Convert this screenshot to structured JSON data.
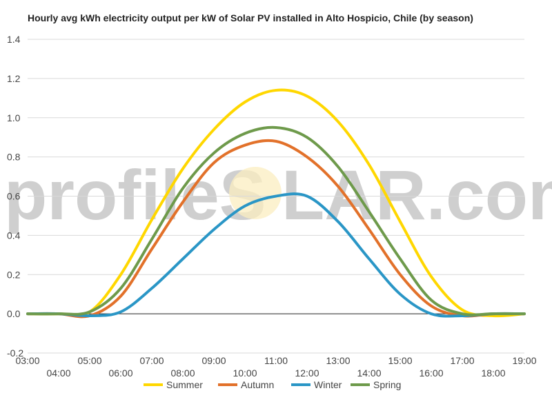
{
  "watermark": {
    "left": "profileS",
    "right": "LAR.com"
  },
  "chart_data": {
    "type": "line",
    "title": "Hourly avg kWh electricity output per kW of Solar PV installed in Alto Hospicio, Chile (by season)",
    "xlabel": "",
    "ylabel": "",
    "x": [
      3,
      4,
      5,
      6,
      7,
      8,
      9,
      10,
      11,
      12,
      13,
      14,
      15,
      16,
      17,
      18,
      19
    ],
    "x_tick_labels": [
      "03:00",
      "04:00",
      "05:00",
      "06:00",
      "07:00",
      "08:00",
      "09:00",
      "10:00",
      "11:00",
      "12:00",
      "13:00",
      "14:00",
      "15:00",
      "16:00",
      "17:00",
      "18:00",
      "19:00"
    ],
    "ylim": [
      -0.2,
      1.4
    ],
    "y_ticks": [
      -0.2,
      0.0,
      0.2,
      0.4,
      0.6,
      0.8,
      1.0,
      1.2,
      1.4
    ],
    "y_tick_labels": [
      "-0.2",
      "0.0",
      "0.2",
      "0.4",
      "0.6",
      "0.8",
      "1.0",
      "1.2",
      "1.4"
    ],
    "grid": true,
    "legend": "bottom",
    "series": [
      {
        "name": "Summer",
        "color": "#FFD700",
        "values": [
          0.0,
          0.0,
          0.01,
          0.2,
          0.48,
          0.74,
          0.94,
          1.08,
          1.14,
          1.11,
          0.98,
          0.76,
          0.47,
          0.19,
          0.02,
          -0.01,
          0.0
        ]
      },
      {
        "name": "Autumn",
        "color": "#E2712A",
        "values": [
          0.0,
          0.0,
          -0.01,
          0.09,
          0.33,
          0.57,
          0.77,
          0.86,
          0.88,
          0.8,
          0.65,
          0.43,
          0.2,
          0.04,
          -0.01,
          0.0,
          0.0
        ]
      },
      {
        "name": "Winter",
        "color": "#2A96C6",
        "values": [
          0.0,
          0.0,
          -0.01,
          0.01,
          0.13,
          0.28,
          0.43,
          0.55,
          0.6,
          0.6,
          0.47,
          0.28,
          0.1,
          0.0,
          -0.01,
          0.0,
          0.0
        ]
      },
      {
        "name": "Spring",
        "color": "#6E9A4B",
        "values": [
          0.0,
          0.0,
          0.01,
          0.13,
          0.38,
          0.64,
          0.82,
          0.92,
          0.95,
          0.9,
          0.75,
          0.52,
          0.28,
          0.07,
          0.0,
          0.0,
          0.0
        ]
      }
    ]
  }
}
